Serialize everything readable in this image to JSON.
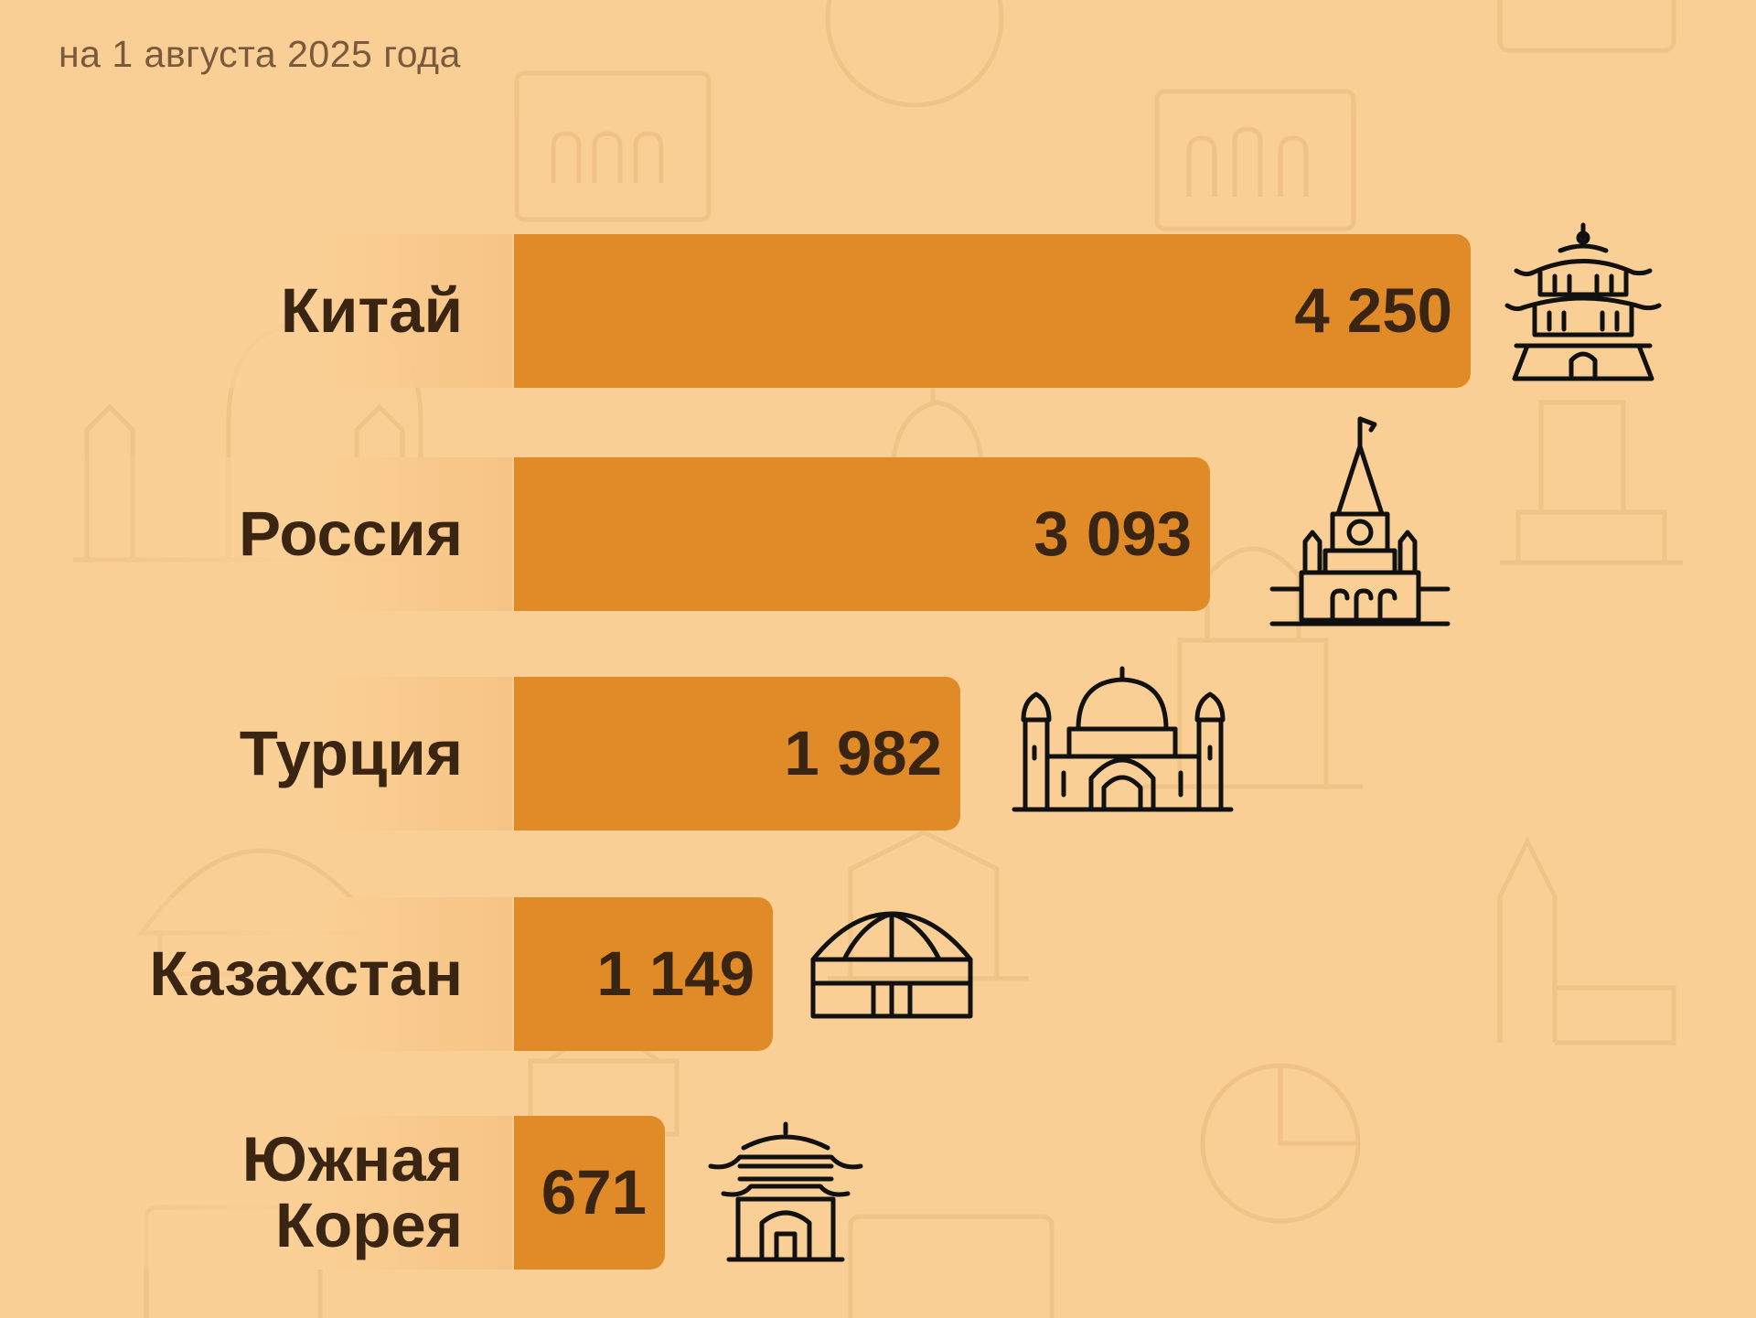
{
  "subtitle": "на 1 августа 2025 года",
  "colors": {
    "background": "#f9cf95",
    "bar": "#e08b28",
    "text": "#3a2412",
    "subtitle": "#7a5a3d"
  },
  "chart_data": {
    "type": "bar",
    "orientation": "horizontal",
    "categories": [
      "Китай",
      "Россия",
      "Турция",
      "Казахстан",
      "Южная\nКорея"
    ],
    "values": [
      4250,
      3093,
      1982,
      1149,
      671
    ],
    "value_labels": [
      "4 250",
      "3 093",
      "1 982",
      "1 149",
      "671"
    ],
    "icons": [
      "chinese-pagoda-icon",
      "kremlin-tower-icon",
      "mosque-icon",
      "yurt-icon",
      "korean-gate-icon"
    ],
    "xlim": [
      0,
      4250
    ],
    "grid": false,
    "legend": "none"
  }
}
